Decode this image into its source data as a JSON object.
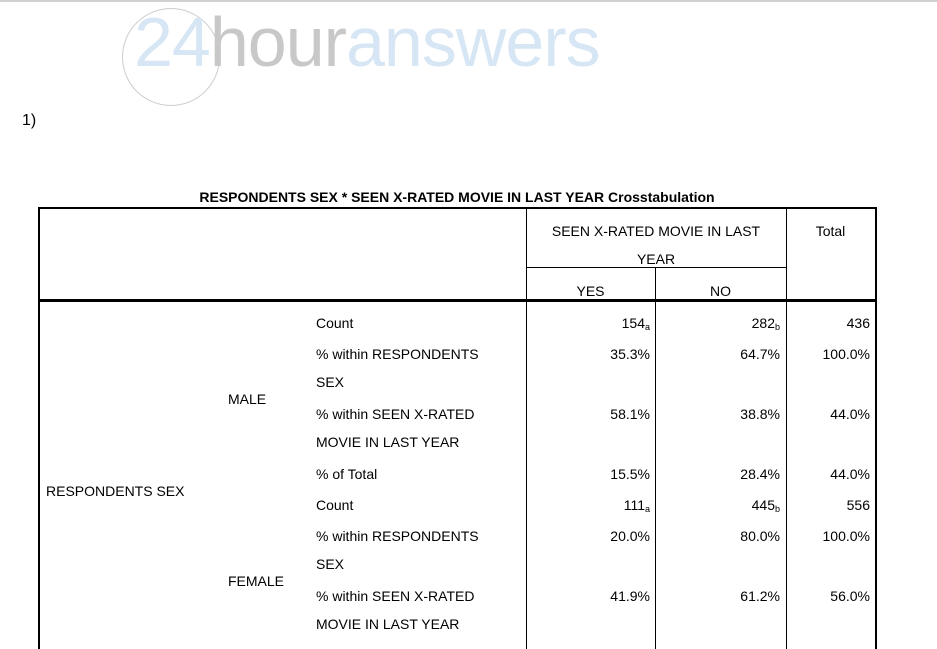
{
  "logo": {
    "part1": "24",
    "part2": "hour",
    "part3": "answers"
  },
  "question": "1)",
  "table": {
    "title": "RESPONDENTS SEX * SEEN X-RATED MOVIE IN LAST YEAR Crosstabulation",
    "col_group": "SEEN X-RATED MOVIE IN LAST YEAR",
    "col_group_line1": "SEEN X-RATED MOVIE IN LAST",
    "col_group_line2": "YEAR",
    "cols": [
      "YES",
      "NO"
    ],
    "total": "Total",
    "row_var": "RESPONDENTS SEX",
    "groups": [
      {
        "label": "MALE",
        "rows": [
          {
            "stat": [
              "Count"
            ],
            "yes": "154",
            "yes_sub": "a",
            "no": "282",
            "no_sub": "b",
            "total": "436"
          },
          {
            "stat": [
              "% within RESPONDENTS",
              "SEX"
            ],
            "yes": "35.3%",
            "no": "64.7%",
            "total": "100.0%"
          },
          {
            "stat": [
              "% within SEEN X-RATED",
              "MOVIE IN LAST YEAR"
            ],
            "yes": "58.1%",
            "no": "38.8%",
            "total": "44.0%"
          },
          {
            "stat": [
              "% of Total"
            ],
            "yes": "15.5%",
            "no": "28.4%",
            "total": "44.0%"
          }
        ]
      },
      {
        "label": "FEMALE",
        "rows": [
          {
            "stat": [
              "Count"
            ],
            "yes": "111",
            "yes_sub": "a",
            "no": "445",
            "no_sub": "b",
            "total": "556"
          },
          {
            "stat": [
              "% within RESPONDENTS",
              "SEX"
            ],
            "yes": "20.0%",
            "no": "80.0%",
            "total": "100.0%"
          },
          {
            "stat": [
              "% within SEEN X-RATED",
              "MOVIE IN LAST YEAR"
            ],
            "yes": "41.9%",
            "no": "61.2%",
            "total": "56.0%"
          }
        ]
      }
    ]
  }
}
